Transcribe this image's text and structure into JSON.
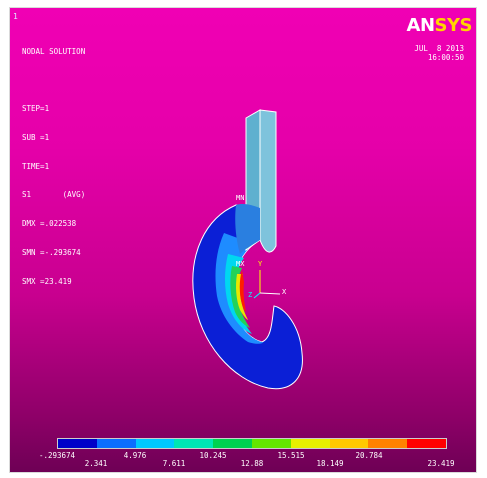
{
  "window": {
    "number": "1"
  },
  "info": {
    "lines": [
      "NODAL SOLUTION",
      "",
      "STEP=1",
      "SUB =1",
      "TIME=1",
      "S1       (AVG)",
      "DMX =.022538",
      "SMN =-.293674",
      "SMX =23.419"
    ]
  },
  "logo": {
    "part1": "AN",
    "part2": "SYS"
  },
  "datetime": {
    "date": "JUL  8 2013",
    "time": "16:00:50"
  },
  "markers": {
    "mn": "MN",
    "mx": "MX",
    "axis_y": "Y",
    "axis_z": "Z",
    "axis_x": "X"
  },
  "legend": {
    "colors": [
      "#0000c8",
      "#0a6eff",
      "#00c8ff",
      "#00e6b4",
      "#00d250",
      "#64e600",
      "#e6f000",
      "#ffc800",
      "#ff8200",
      "#ff0000"
    ],
    "row1": [
      "-.293674",
      "4.976",
      "10.245",
      "15.515",
      "20.784"
    ],
    "row2": [
      "2.341",
      "7.611",
      "12.88",
      "18.149",
      "23.419"
    ]
  }
}
